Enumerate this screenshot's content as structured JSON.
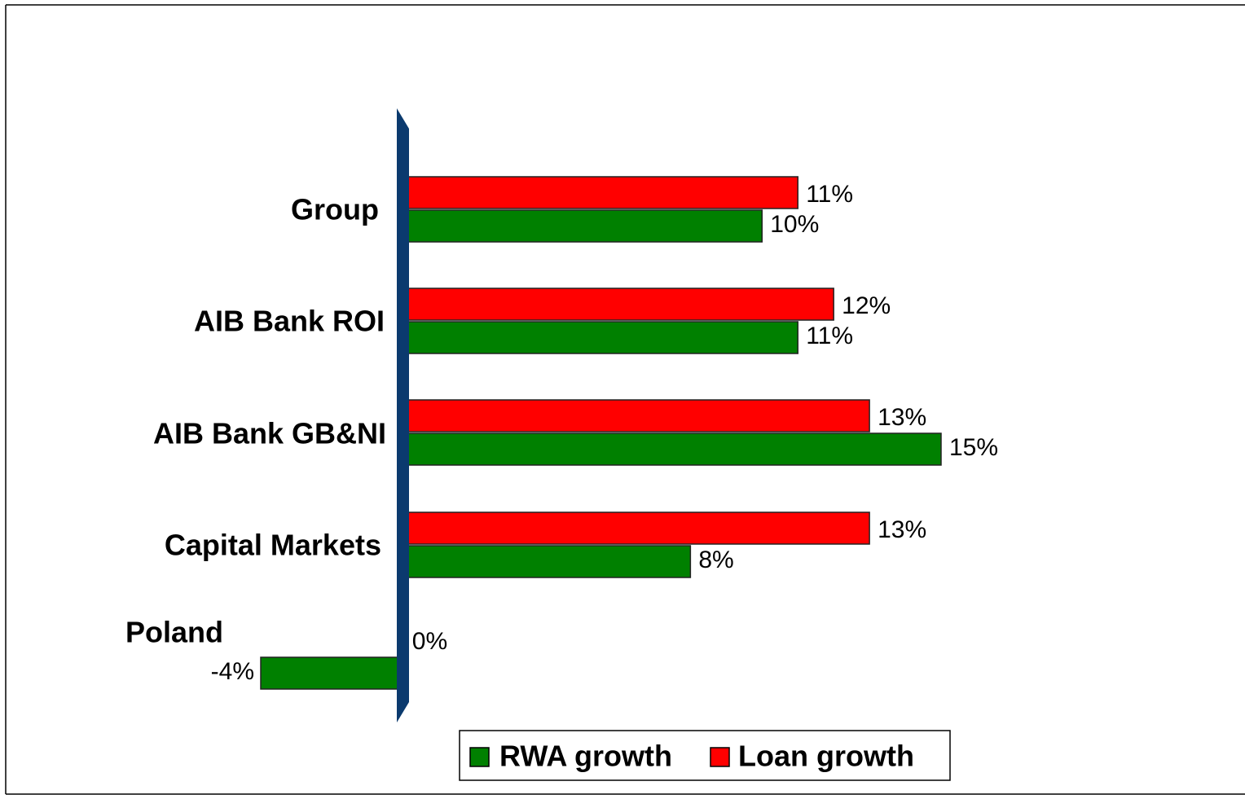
{
  "chart_data": {
    "type": "bar",
    "orientation": "horizontal",
    "categories": [
      "Group",
      "AIB Bank ROI",
      "AIB Bank GB&NI",
      "Capital Markets",
      "Poland"
    ],
    "series": [
      {
        "name": "RWA growth",
        "color": "#008000",
        "values": [
          10,
          11,
          15,
          8,
          -4
        ],
        "value_labels": [
          "10%",
          "11%",
          "15%",
          "8%",
          "-4%"
        ]
      },
      {
        "name": "Loan growth",
        "color": "#ff0000",
        "values": [
          11,
          12,
          13,
          13,
          0
        ],
        "value_labels": [
          "11%",
          "12%",
          "13%",
          "13%",
          "0%"
        ]
      }
    ]
  }
}
